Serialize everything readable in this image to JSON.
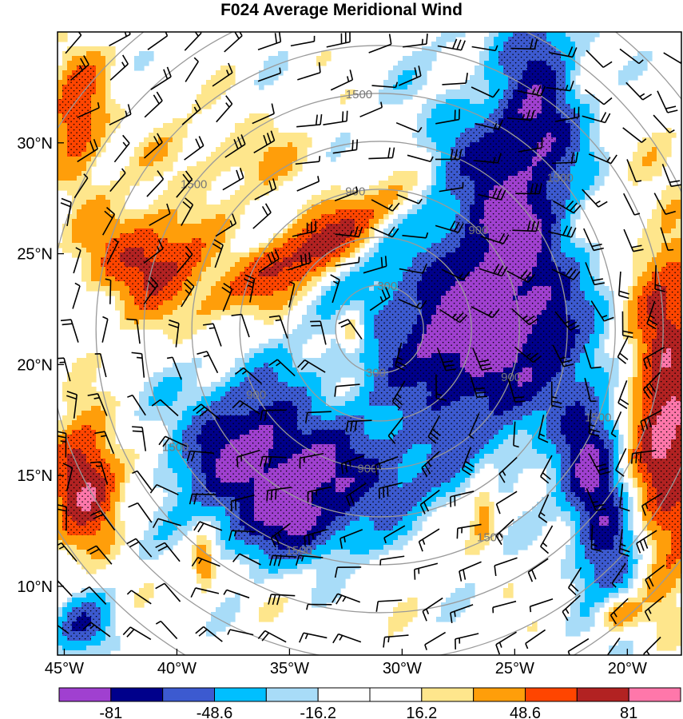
{
  "title": "F024 Average Meridional Wind",
  "x_axis": {
    "ticks": [
      {
        "lon": -45,
        "label": "45°W"
      },
      {
        "lon": -40,
        "label": "40°W"
      },
      {
        "lon": -35,
        "label": "35°W"
      },
      {
        "lon": -30,
        "label": "30°W"
      },
      {
        "lon": -25,
        "label": "25°W"
      },
      {
        "lon": -20,
        "label": "20°W"
      }
    ],
    "range": [
      -45.3,
      -17.6
    ]
  },
  "y_axis": {
    "ticks": [
      {
        "lat": 30,
        "label": "30°N"
      },
      {
        "lat": 25,
        "label": "25°N"
      },
      {
        "lat": 20,
        "label": "20°N"
      },
      {
        "lat": 15,
        "label": "15°N"
      },
      {
        "lat": 10,
        "label": "10°N"
      }
    ],
    "range": [
      6.9,
      35.0
    ]
  },
  "range_rings": {
    "center": {
      "lon": -31.0,
      "lat": 21.6
    },
    "labels": [
      "300",
      "900",
      "1500"
    ]
  },
  "colorbar": {
    "colors": [
      "#a040d0",
      "#00008b",
      "#3c5ad0",
      "#00bfff",
      "#a8dcf8",
      "#ffffff",
      "#ffffff",
      "#fee68c",
      "#ff9e0a",
      "#ff4500",
      "#b22222",
      "#ff77aa"
    ],
    "labels": [
      {
        "boundary_index": 1,
        "label": "-81"
      },
      {
        "boundary_index": 3,
        "label": "-48.6"
      },
      {
        "boundary_index": 5,
        "label": "-16.2"
      },
      {
        "boundary_index": 7,
        "label": "16.2"
      },
      {
        "boundary_index": 9,
        "label": "48.6"
      },
      {
        "boundary_index": 11,
        "label": "81"
      }
    ]
  },
  "wind_field": {
    "features": [
      {
        "type": "negative",
        "lon": -27.4,
        "lat": 21.0,
        "rx": 3.8,
        "ry": 4.4,
        "rot": -30,
        "mag": 3.4
      },
      {
        "type": "negative",
        "lon": -25.3,
        "lat": 26.2,
        "rx": 2.3,
        "ry": 5.6,
        "rot": -22,
        "mag": 2.6
      },
      {
        "type": "negative",
        "lon": -24.0,
        "lat": 31.8,
        "rx": 1.8,
        "ry": 3.8,
        "rot": -5,
        "mag": 3.2
      },
      {
        "type": "negative",
        "lon": -36.6,
        "lat": 16.0,
        "rx": 3.3,
        "ry": 3.4,
        "rot": 0,
        "mag": 3.1
      },
      {
        "type": "negative",
        "lon": -31.8,
        "lat": 15.0,
        "rx": 3.8,
        "ry": 2.0,
        "rot": 0,
        "mag": 1.9
      },
      {
        "type": "negative",
        "lon": -34.2,
        "lat": 12.6,
        "rx": 2.6,
        "ry": 1.5,
        "rot": 0,
        "mag": 1.7
      },
      {
        "type": "negative",
        "lon": -21.3,
        "lat": 13.7,
        "rx": 1.3,
        "ry": 4.8,
        "rot": -10,
        "mag": 3.1
      },
      {
        "type": "negative",
        "lon": -44.2,
        "lat": 8.2,
        "rx": 1.2,
        "ry": 1.2,
        "rot": 0,
        "mag": 2.0
      },
      {
        "type": "positive",
        "lon": -41.2,
        "lat": 24.7,
        "rx": 2.4,
        "ry": 2.0,
        "rot": 0,
        "mag": 2.6
      },
      {
        "type": "positive",
        "lon": -34.1,
        "lat": 25.2,
        "rx": 1.1,
        "ry": 4.6,
        "rot": 58,
        "mag": 2.8
      },
      {
        "type": "positive",
        "lon": -44.1,
        "lat": 14.8,
        "rx": 1.4,
        "ry": 2.5,
        "rot": 0,
        "mag": 3.3
      },
      {
        "type": "positive",
        "lon": -18.3,
        "lat": 18.0,
        "rx": 1.4,
        "ry": 7.0,
        "rot": 0,
        "mag": 3.3
      },
      {
        "type": "positive",
        "lon": -44.4,
        "lat": 31.0,
        "rx": 1.2,
        "ry": 2.8,
        "rot": 0,
        "mag": 2.1
      },
      {
        "type": "positive",
        "lon": -32.2,
        "lat": 21.5,
        "rx": 0.5,
        "ry": 0.8,
        "rot": 0,
        "mag": 2.0
      },
      {
        "type": "positive",
        "lon": -20.5,
        "lat": 8.8,
        "rx": 0.9,
        "ry": 0.9,
        "rot": 0,
        "mag": 2.0
      },
      {
        "type": "positive",
        "lon": -38.8,
        "lat": 11.0,
        "rx": 0.5,
        "ry": 1.2,
        "rot": 0,
        "mag": 1.8
      },
      {
        "type": "positive",
        "lon": -26.4,
        "lat": 13.7,
        "rx": 0.6,
        "ry": 1.5,
        "rot": 0,
        "mag": 1.5
      },
      {
        "type": "positive",
        "lon": -25.0,
        "lat": 32.6,
        "rx": 1.8,
        "ry": 1.4,
        "rot": 0,
        "mag": 0.9
      },
      {
        "type": "positive",
        "lon": -37.5,
        "lat": 29.3,
        "rx": 3.5,
        "ry": 1.8,
        "rot": 0,
        "mag": 0.8
      }
    ]
  }
}
